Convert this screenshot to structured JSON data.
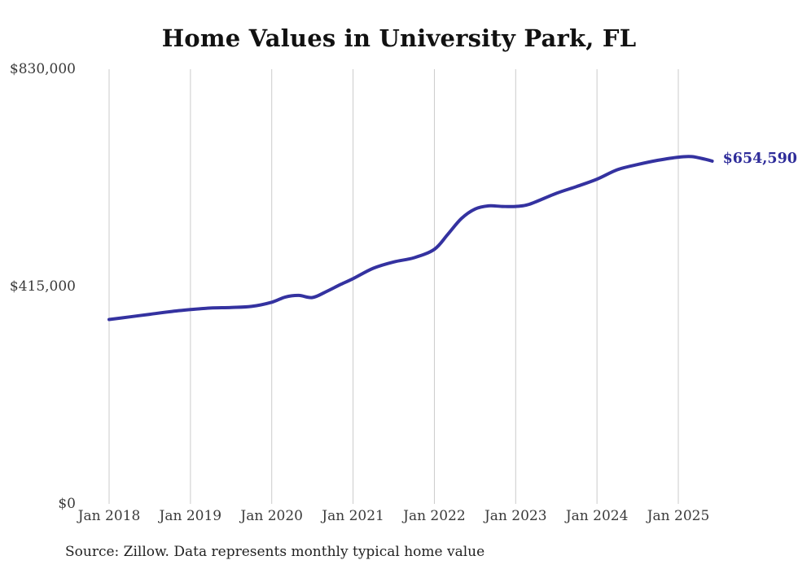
{
  "title": "Home Values in University Park, FL",
  "source_note": "Source: Zillow. Data represents monthly typical home value",
  "colors": {
    "line": "#3432a0",
    "grid": "#cbcbcb",
    "title": "#111111",
    "axis_text": "#3a3a3a",
    "end_label": "#2e2c9a",
    "source_text": "#222222"
  },
  "chart_data": {
    "type": "line",
    "title": "Home Values in University Park, FL",
    "xlabel": "",
    "ylabel": "",
    "ylim": [
      0,
      830000
    ],
    "x_span_months": 89,
    "grid": "vertical-only",
    "legend": "none",
    "y_ticks": [
      {
        "label": "$830,000",
        "value": 830000
      },
      {
        "label": "$415,000",
        "value": 415000
      },
      {
        "label": "$0",
        "value": 0
      }
    ],
    "x_ticks": [
      {
        "label": "Jan 2018",
        "month_index": 0
      },
      {
        "label": "Jan 2019",
        "month_index": 12
      },
      {
        "label": "Jan 2020",
        "month_index": 24
      },
      {
        "label": "Jan 2021",
        "month_index": 36
      },
      {
        "label": "Jan 2022",
        "month_index": 48
      },
      {
        "label": "Jan 2023",
        "month_index": 60
      },
      {
        "label": "Jan 2024",
        "month_index": 72
      },
      {
        "label": "Jan 2025",
        "month_index": 84
      }
    ],
    "series": [
      {
        "name": "Monthly typical home value",
        "points": [
          {
            "date": "2018-01",
            "value": 352000
          },
          {
            "date": "2018-04",
            "value": 357000
          },
          {
            "date": "2018-07",
            "value": 362000
          },
          {
            "date": "2018-10",
            "value": 367000
          },
          {
            "date": "2019-01",
            "value": 371000
          },
          {
            "date": "2019-04",
            "value": 374000
          },
          {
            "date": "2019-07",
            "value": 375000
          },
          {
            "date": "2019-10",
            "value": 377000
          },
          {
            "date": "2020-01",
            "value": 385000
          },
          {
            "date": "2020-03",
            "value": 395000
          },
          {
            "date": "2020-05",
            "value": 398000
          },
          {
            "date": "2020-07",
            "value": 394000
          },
          {
            "date": "2020-09",
            "value": 405000
          },
          {
            "date": "2020-11",
            "value": 418000
          },
          {
            "date": "2021-01",
            "value": 430000
          },
          {
            "date": "2021-04",
            "value": 450000
          },
          {
            "date": "2021-07",
            "value": 462000
          },
          {
            "date": "2021-10",
            "value": 470000
          },
          {
            "date": "2022-01",
            "value": 486000
          },
          {
            "date": "2022-03",
            "value": 515000
          },
          {
            "date": "2022-05",
            "value": 545000
          },
          {
            "date": "2022-07",
            "value": 563000
          },
          {
            "date": "2022-09",
            "value": 569000
          },
          {
            "date": "2022-11",
            "value": 568000
          },
          {
            "date": "2023-01",
            "value": 568000
          },
          {
            "date": "2023-03",
            "value": 572000
          },
          {
            "date": "2023-07",
            "value": 593000
          },
          {
            "date": "2023-10",
            "value": 606000
          },
          {
            "date": "2024-01",
            "value": 620000
          },
          {
            "date": "2024-04",
            "value": 638000
          },
          {
            "date": "2024-07",
            "value": 648000
          },
          {
            "date": "2024-10",
            "value": 656000
          },
          {
            "date": "2025-01",
            "value": 662000
          },
          {
            "date": "2025-03",
            "value": 663000
          },
          {
            "date": "2025-05",
            "value": 658000
          },
          {
            "date": "2025-06",
            "value": 654590
          }
        ]
      }
    ],
    "end_annotation": {
      "label": "$654,590",
      "value": 654590,
      "date": "2025-06"
    }
  }
}
